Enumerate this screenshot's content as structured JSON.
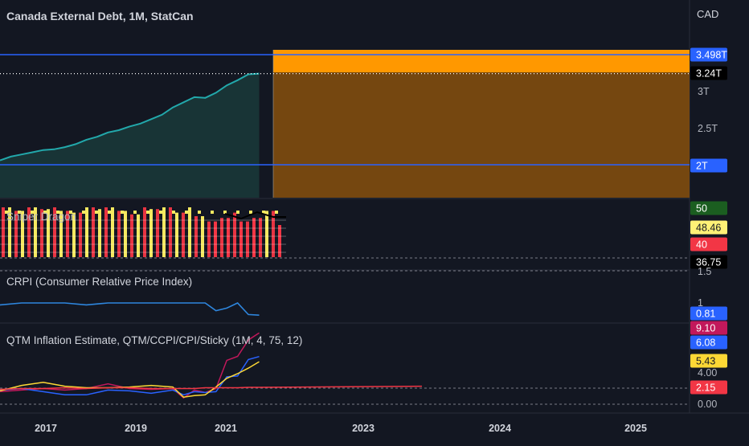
{
  "header": {
    "title": "Canada External Debt, 1M, StatCan",
    "currency": "CAD"
  },
  "colors": {
    "background": "#131722",
    "line_main": "#22a8ab",
    "area_fill": "#1a3a3a",
    "hline": "#2962ff",
    "box_orange": "#ff9800",
    "box_dark_orange": "#7a4a10",
    "crpi": "#2e86de",
    "qtm": "#c2185b",
    "ccpi": "#2962ff",
    "cpi_yellow": "#fdd835",
    "sticky_red": "#f23645",
    "green": "#089981",
    "red": "#f23645",
    "yellow": "#f5e960"
  },
  "panes": {
    "main": {
      "y_ticks": [
        "3T",
        "2.5T"
      ],
      "badges": [
        {
          "label": "3.498T",
          "value": 3.498,
          "color": "#2962ff",
          "text_color": "#ffffff"
        },
        {
          "label": "3.24T",
          "value": 3.24,
          "color": "#000000",
          "text_color": "#ffffff"
        },
        {
          "label": "2T",
          "value": 2.0,
          "color": "#2962ff",
          "text_color": "#ffffff"
        }
      ]
    },
    "sniper": {
      "title": "Sniper Dragon",
      "badges": [
        {
          "label": "50",
          "color": "#1b5e20",
          "text_color": "#ffffff"
        },
        {
          "label": "48.46",
          "color": "#fff176",
          "text_color": "#131722"
        },
        {
          "label": "40",
          "color": "#f23645",
          "text_color": "#ffffff"
        },
        {
          "label": "36.75",
          "color": "#000000",
          "text_color": "#ffffff"
        }
      ]
    },
    "crpi": {
      "title": "CRPI (Consumer Relative Price Index)",
      "y_ticks": [
        "1.5",
        "1"
      ],
      "badges": [
        {
          "label": "0.81",
          "color": "#2962ff",
          "text_color": "#ffffff"
        }
      ]
    },
    "qtm": {
      "title": "QTM Inflation Estimate, QTM/CCPI/CPI/Sticky (1M, 4, 75, 12)",
      "y_ticks": [
        "4.00",
        "0.00"
      ],
      "badges": [
        {
          "label": "9.10",
          "color": "#c2185b",
          "text_color": "#ffffff"
        },
        {
          "label": "6.08",
          "color": "#2962ff",
          "text_color": "#ffffff"
        },
        {
          "label": "5.43",
          "color": "#fdd835",
          "text_color": "#131722"
        },
        {
          "label": "2.15",
          "color": "#f23645",
          "text_color": "#ffffff"
        }
      ]
    }
  },
  "x_axis": {
    "labels": [
      "2017",
      "2019",
      "2021",
      "2023",
      "2024",
      "2025"
    ]
  },
  "chart_data": [
    {
      "type": "area",
      "title": "Canada External Debt, 1M, StatCan",
      "unit": "CAD",
      "x": [
        "2016-01",
        "2016-04",
        "2016-07",
        "2016-10",
        "2017-01",
        "2017-04",
        "2017-07",
        "2017-10",
        "2018-01",
        "2018-04",
        "2018-07",
        "2018-10",
        "2019-01",
        "2019-04",
        "2019-07",
        "2019-10",
        "2020-01",
        "2020-04",
        "2020-07",
        "2020-10",
        "2021-01",
        "2021-04",
        "2021-07",
        "2021-10",
        "2022-01"
      ],
      "values": [
        2.06,
        2.11,
        2.14,
        2.17,
        2.2,
        2.21,
        2.24,
        2.28,
        2.34,
        2.38,
        2.44,
        2.47,
        2.52,
        2.56,
        2.62,
        2.68,
        2.78,
        2.85,
        2.92,
        2.91,
        2.98,
        3.08,
        3.15,
        3.23,
        3.24
      ],
      "hlines": [
        3.498,
        2.0
      ],
      "last_value": 3.24
    },
    {
      "type": "bar",
      "title": "Sniper Dragon",
      "series": [
        {
          "name": "",
          "values": [
            50,
            48,
            50,
            49,
            50,
            48,
            47,
            50,
            49,
            50,
            48,
            46,
            50,
            49,
            50,
            47,
            50,
            45,
            42,
            44,
            47,
            42,
            44,
            48,
            40
          ]
        }
      ],
      "last_values": [
        50,
        48.46,
        40,
        36.75
      ]
    },
    {
      "type": "line",
      "title": "CRPI (Consumer Relative Price Index)",
      "x": [
        "2016-01",
        "2016-07",
        "2017-01",
        "2017-07",
        "2018-01",
        "2018-07",
        "2019-01",
        "2019-07",
        "2020-01",
        "2020-07",
        "2020-10",
        "2021-01",
        "2021-04",
        "2021-07",
        "2021-10",
        "2022-01"
      ],
      "values": [
        0.97,
        1.0,
        1.0,
        1.0,
        0.97,
        1.0,
        1.0,
        1.0,
        1.0,
        1.0,
        1.0,
        0.88,
        0.92,
        1.0,
        0.82,
        0.81
      ],
      "ylim": [
        0.6,
        1.5
      ],
      "last_value": 0.81
    },
    {
      "type": "line",
      "title": "QTM Inflation Estimate, QTM/CCPI/CPI/Sticky (1M, 4, 75, 12)",
      "x": [
        "2016-01",
        "2016-07",
        "2017-01",
        "2017-07",
        "2018-01",
        "2018-07",
        "2019-01",
        "2019-07",
        "2020-01",
        "2020-04",
        "2020-07",
        "2020-10",
        "2021-01",
        "2021-04",
        "2021-07",
        "2021-10",
        "2022-01"
      ],
      "series": [
        {
          "name": "QTM",
          "values": [
            1.6,
            1.8,
            2.0,
            1.8,
            2.0,
            2.6,
            2.0,
            1.9,
            2.0,
            0.8,
            1.8,
            1.5,
            2.0,
            5.6,
            6.1,
            8.2,
            9.1
          ]
        },
        {
          "name": "CCPI",
          "values": [
            1.8,
            2.0,
            1.6,
            1.2,
            1.2,
            1.8,
            1.7,
            1.4,
            1.8,
            1.2,
            1.6,
            1.5,
            1.6,
            3.5,
            3.6,
            5.7,
            6.08
          ]
        },
        {
          "name": "CPI",
          "values": [
            1.7,
            2.4,
            2.8,
            2.3,
            2.1,
            2.1,
            2.2,
            2.4,
            2.2,
            0.9,
            1.1,
            1.2,
            2.2,
            3.3,
            3.9,
            4.6,
            5.43
          ]
        },
        {
          "name": "Sticky",
          "values": [
            1.9,
            2.0,
            2.0,
            2.1,
            2.0,
            2.1,
            2.1,
            2.0,
            2.0,
            2.0,
            2.0,
            2.1,
            2.1,
            2.1,
            2.1,
            2.15,
            2.15
          ]
        }
      ],
      "last_values": [
        9.1,
        6.08,
        5.43,
        2.15
      ]
    }
  ]
}
